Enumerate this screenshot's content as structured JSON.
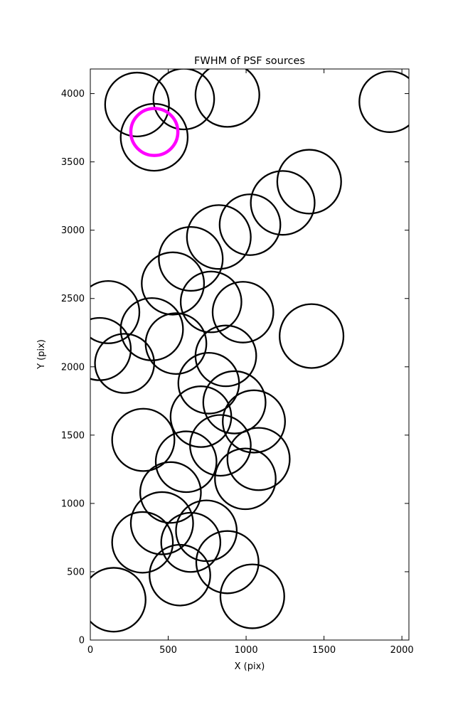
{
  "chart_data": {
    "type": "scatter",
    "title": "FWHM of PSF sources",
    "xlabel": "X (pix)",
    "ylabel": "Y (pix)",
    "xlim": [
      0,
      2045
    ],
    "ylim": [
      0,
      4180
    ],
    "xticks": [
      0,
      500,
      1000,
      1500,
      2000
    ],
    "yticks": [
      0,
      500,
      1000,
      1500,
      2000,
      2500,
      3000,
      3500,
      4000
    ],
    "grid": false,
    "legend": "none",
    "marker": "open-circle",
    "circle_color": "#000000",
    "highlight_color": "#ff00ff",
    "circles": [
      {
        "x": 300,
        "y": 3920,
        "r": 205
      },
      {
        "x": 600,
        "y": 3960,
        "r": 195
      },
      {
        "x": 880,
        "y": 3990,
        "r": 205
      },
      {
        "x": 410,
        "y": 3680,
        "r": 215
      },
      {
        "x": 1922,
        "y": 3940,
        "r": 195
      },
      {
        "x": 1405,
        "y": 3355,
        "r": 205
      },
      {
        "x": 1235,
        "y": 3200,
        "r": 205
      },
      {
        "x": 1025,
        "y": 3040,
        "r": 195
      },
      {
        "x": 825,
        "y": 2950,
        "r": 205
      },
      {
        "x": 645,
        "y": 2790,
        "r": 205
      },
      {
        "x": 530,
        "y": 2610,
        "r": 200
      },
      {
        "x": 775,
        "y": 2475,
        "r": 195
      },
      {
        "x": 980,
        "y": 2400,
        "r": 195
      },
      {
        "x": 1420,
        "y": 2225,
        "r": 205
      },
      {
        "x": 115,
        "y": 2400,
        "r": 200
      },
      {
        "x": 60,
        "y": 2130,
        "r": 200
      },
      {
        "x": 220,
        "y": 2025,
        "r": 190
      },
      {
        "x": 395,
        "y": 2275,
        "r": 200
      },
      {
        "x": 550,
        "y": 2170,
        "r": 195
      },
      {
        "x": 870,
        "y": 2080,
        "r": 195
      },
      {
        "x": 760,
        "y": 1880,
        "r": 195
      },
      {
        "x": 925,
        "y": 1740,
        "r": 200
      },
      {
        "x": 710,
        "y": 1635,
        "r": 195
      },
      {
        "x": 1050,
        "y": 1600,
        "r": 200
      },
      {
        "x": 835,
        "y": 1425,
        "r": 195
      },
      {
        "x": 1080,
        "y": 1325,
        "r": 200
      },
      {
        "x": 995,
        "y": 1180,
        "r": 195
      },
      {
        "x": 340,
        "y": 1465,
        "r": 200
      },
      {
        "x": 615,
        "y": 1305,
        "r": 195
      },
      {
        "x": 515,
        "y": 1080,
        "r": 195
      },
      {
        "x": 460,
        "y": 855,
        "r": 200
      },
      {
        "x": 335,
        "y": 715,
        "r": 195
      },
      {
        "x": 645,
        "y": 715,
        "r": 190
      },
      {
        "x": 745,
        "y": 800,
        "r": 195
      },
      {
        "x": 880,
        "y": 570,
        "r": 200
      },
      {
        "x": 575,
        "y": 475,
        "r": 195
      },
      {
        "x": 1040,
        "y": 320,
        "r": 205
      },
      {
        "x": 150,
        "y": 295,
        "r": 205
      }
    ],
    "highlight_circle": {
      "x": 411,
      "y": 3719,
      "r": 151
    }
  }
}
